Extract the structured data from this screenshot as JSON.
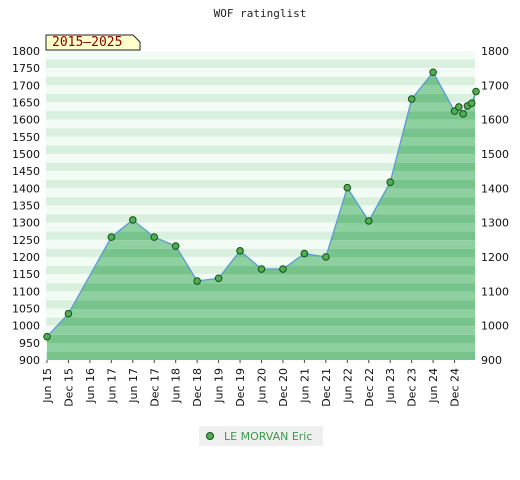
{
  "chart_data": {
    "type": "area",
    "title": "WOF ratinglist",
    "range_label": "2015–2025",
    "xlabel": "",
    "ylabel": "",
    "ylim": [
      900,
      1800
    ],
    "y_ticks": [
      900,
      950,
      1000,
      1050,
      1100,
      1150,
      1200,
      1250,
      1300,
      1350,
      1400,
      1450,
      1500,
      1550,
      1600,
      1650,
      1700,
      1750,
      1800
    ],
    "y2_ticks": [
      900,
      1000,
      1100,
      1200,
      1300,
      1400,
      1500,
      1600,
      1700,
      1800
    ],
    "x_labels": [
      "Jun 15",
      "Dec 15",
      "Jun 16",
      "Jun 17",
      "Jun 17",
      "Dec 17",
      "Jun 18",
      "Dec 18",
      "Jun 19",
      "Dec 19",
      "Jun 20",
      "Dec 20",
      "Jun 21",
      "Dec 21",
      "Jun 22",
      "Dec 22",
      "Jun 23",
      "Dec 23",
      "Jun 24",
      "Dec 24"
    ],
    "grid": true,
    "legend_position": "bottom-center",
    "colors": {
      "line": "#5b9bd5",
      "marker": "#4caf50",
      "fill_light": "#e8f6ec",
      "fill_dark": "#7cc48e"
    },
    "series": [
      {
        "name": "LE MORVAN Eric",
        "points": [
          {
            "x": 0.0,
            "y": 968
          },
          {
            "x": 1.0,
            "y": 1035
          },
          {
            "x": 3.0,
            "y": 1258
          },
          {
            "x": 4.0,
            "y": 1308
          },
          {
            "x": 5.0,
            "y": 1258
          },
          {
            "x": 6.0,
            "y": 1232
          },
          {
            "x": 7.0,
            "y": 1130
          },
          {
            "x": 8.0,
            "y": 1138
          },
          {
            "x": 9.0,
            "y": 1218
          },
          {
            "x": 10.0,
            "y": 1165
          },
          {
            "x": 11.0,
            "y": 1165
          },
          {
            "x": 12.0,
            "y": 1210
          },
          {
            "x": 13.0,
            "y": 1200
          },
          {
            "x": 14.0,
            "y": 1402
          },
          {
            "x": 15.0,
            "y": 1305
          },
          {
            "x": 16.0,
            "y": 1418
          },
          {
            "x": 17.0,
            "y": 1660
          },
          {
            "x": 18.0,
            "y": 1738
          },
          {
            "x": 19.0,
            "y": 1625
          },
          {
            "x": 19.2,
            "y": 1637
          },
          {
            "x": 19.4,
            "y": 1617
          },
          {
            "x": 19.6,
            "y": 1640
          },
          {
            "x": 19.8,
            "y": 1648
          },
          {
            "x": 20.0,
            "y": 1682
          }
        ]
      }
    ]
  }
}
